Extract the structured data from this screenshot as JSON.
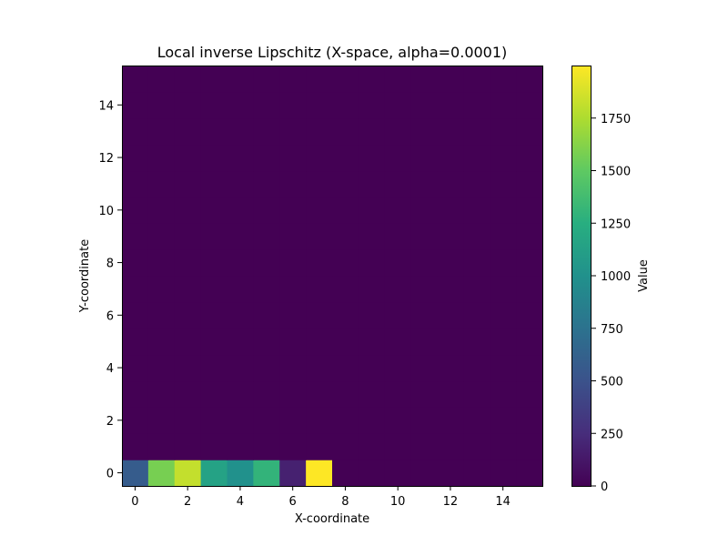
{
  "chart_data": {
    "type": "heatmap",
    "title": "Local inverse Lipschitz (X-space, alpha=0.0001)",
    "xlabel": "X-coordinate",
    "ylabel": "Y-coordinate",
    "grid_size": [
      16,
      16
    ],
    "xlim": [
      -0.5,
      15.5
    ],
    "ylim": [
      -0.5,
      15.5
    ],
    "x_ticks": [
      0,
      2,
      4,
      6,
      8,
      10,
      12,
      14
    ],
    "y_ticks": [
      0,
      2,
      4,
      6,
      8,
      10,
      12,
      14
    ],
    "grid": false,
    "colormap": "viridis",
    "colorbar": {
      "label": "Value",
      "min": 0,
      "max": 2000,
      "ticks": [
        0,
        250,
        500,
        750,
        1000,
        1250,
        1500,
        1750
      ],
      "placement": "right"
    },
    "default_value": 0,
    "row_y0_values": [
      580,
      1580,
      1820,
      1150,
      1000,
      1300,
      180,
      2000,
      0,
      0,
      0,
      0,
      0,
      0,
      0,
      0
    ]
  }
}
